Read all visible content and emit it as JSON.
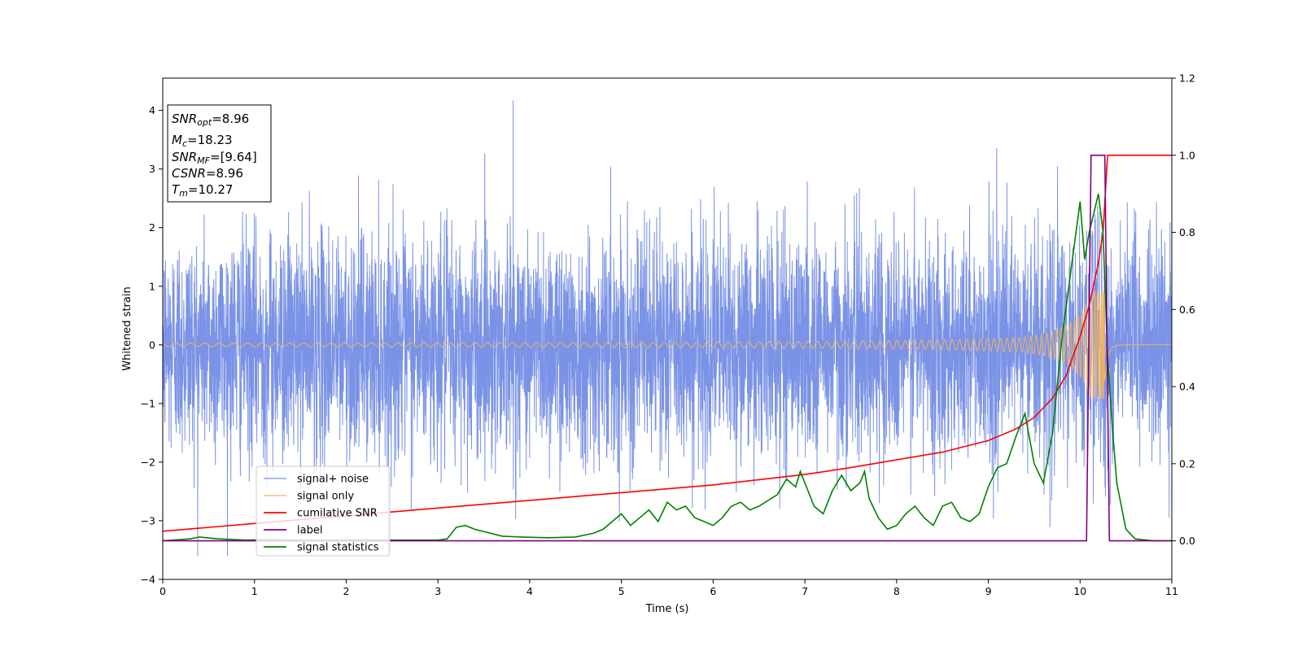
{
  "chart_data": {
    "type": "line",
    "xlabel": "Time (s)",
    "ylabel": "Whitened strain",
    "xlim": [
      0,
      11
    ],
    "ylim": [
      -4,
      4.55
    ],
    "y2lim": [
      -0.1,
      1.2
    ],
    "x_ticks": [
      "0",
      "1",
      "2",
      "3",
      "4",
      "5",
      "6",
      "7",
      "8",
      "9",
      "10",
      "11"
    ],
    "y_ticks": [
      "−4",
      "−3",
      "−2",
      "−1",
      "0",
      "1",
      "2",
      "3",
      "4"
    ],
    "y2_ticks": [
      "0.0",
      "0.2",
      "0.4",
      "0.6",
      "0.8",
      "1.0",
      "1.2"
    ],
    "grid": false,
    "legend_placement": "lower-left",
    "annotation": {
      "snr_opt": {
        "base": "SNR",
        "sub": "opt",
        "value": "=8.96"
      },
      "mc": {
        "base": "M",
        "sub": "c",
        "value": "=18.23"
      },
      "snr_mf": {
        "base": "SNR",
        "sub": "MF",
        "value": "=[9.64]"
      },
      "csnr": {
        "base": "CSNR",
        "value": "=8.96"
      },
      "tm": {
        "base": "T",
        "sub": "m",
        "value": "=10.27"
      }
    },
    "series": [
      {
        "name": "signal+ noise",
        "color": "#7b93e6",
        "axis": "left",
        "description_stats": {
          "approx_std": 0.95,
          "max_peak": 4.17,
          "max_peak_t": 3.82,
          "min": -3.6
        }
      },
      {
        "name": "signal only",
        "color": "#f0b461",
        "axis": "left",
        "chirp": {
          "merger_t": 10.27,
          "peak_amplitude": 0.92,
          "early_amplitude": 0.03
        }
      },
      {
        "name": "cumilative SNR",
        "color": "#ff0000",
        "axis": "right",
        "x": [
          0,
          1,
          2,
          3,
          4,
          5,
          6,
          7,
          7.5,
          8,
          8.5,
          9,
          9.3,
          9.5,
          9.7,
          9.85,
          10.0,
          10.1,
          10.2,
          10.25,
          10.3,
          11
        ],
        "values": [
          0.025,
          0.045,
          0.065,
          0.085,
          0.105,
          0.125,
          0.145,
          0.172,
          0.19,
          0.21,
          0.23,
          0.26,
          0.29,
          0.32,
          0.37,
          0.43,
          0.53,
          0.61,
          0.72,
          0.8,
          1.0,
          1.0
        ]
      },
      {
        "name": "label",
        "color": "#800080",
        "axis": "right",
        "x": [
          0,
          10.07,
          10.12,
          10.27,
          10.32,
          11
        ],
        "values": [
          0,
          0,
          1,
          1,
          0,
          0
        ]
      },
      {
        "name": "signal statistics",
        "color": "#008000",
        "axis": "right",
        "x": [
          0,
          0.3,
          0.4,
          0.6,
          0.9,
          1.2,
          1.5,
          2.0,
          2.5,
          3.0,
          3.1,
          3.2,
          3.3,
          3.4,
          3.7,
          3.9,
          4.2,
          4.5,
          4.7,
          4.8,
          4.9,
          5.0,
          5.1,
          5.2,
          5.3,
          5.4,
          5.5,
          5.6,
          5.7,
          5.8,
          5.9,
          6.0,
          6.1,
          6.2,
          6.3,
          6.4,
          6.5,
          6.7,
          6.8,
          6.9,
          6.95,
          7.0,
          7.1,
          7.2,
          7.3,
          7.4,
          7.5,
          7.6,
          7.65,
          7.7,
          7.8,
          7.9,
          8.0,
          8.1,
          8.2,
          8.3,
          8.4,
          8.5,
          8.6,
          8.7,
          8.8,
          8.9,
          9.0,
          9.1,
          9.2,
          9.3,
          9.4,
          9.5,
          9.6,
          9.7,
          9.8,
          9.9,
          10.0,
          10.05,
          10.1,
          10.15,
          10.2,
          10.25,
          10.3,
          10.35,
          10.4,
          10.5,
          10.6,
          10.8,
          11
        ],
        "values": [
          0.0,
          0.005,
          0.01,
          0.005,
          0.002,
          0.003,
          0.001,
          0.002,
          0.002,
          0.002,
          0.005,
          0.035,
          0.04,
          0.03,
          0.012,
          0.01,
          0.008,
          0.01,
          0.02,
          0.03,
          0.05,
          0.07,
          0.04,
          0.06,
          0.08,
          0.05,
          0.1,
          0.08,
          0.09,
          0.06,
          0.05,
          0.04,
          0.06,
          0.09,
          0.1,
          0.08,
          0.09,
          0.12,
          0.16,
          0.14,
          0.18,
          0.15,
          0.09,
          0.07,
          0.13,
          0.17,
          0.13,
          0.15,
          0.18,
          0.11,
          0.06,
          0.03,
          0.04,
          0.07,
          0.09,
          0.06,
          0.04,
          0.09,
          0.1,
          0.06,
          0.05,
          0.07,
          0.14,
          0.19,
          0.2,
          0.27,
          0.33,
          0.2,
          0.15,
          0.28,
          0.52,
          0.7,
          0.88,
          0.73,
          0.8,
          0.85,
          0.9,
          0.8,
          0.48,
          0.3,
          0.15,
          0.03,
          0.005,
          0.0,
          0.0
        ]
      }
    ]
  }
}
